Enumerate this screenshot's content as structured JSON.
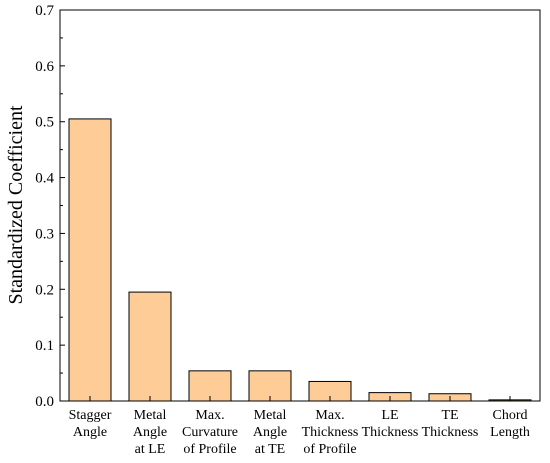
{
  "chart_data": {
    "type": "bar",
    "title": "",
    "xlabel": "",
    "ylabel": "Standardized Coefficient",
    "ylim": [
      0,
      0.7
    ],
    "yticks": [
      "0.0",
      "0.1",
      "0.2",
      "0.3",
      "0.4",
      "0.5",
      "0.6",
      "0.7"
    ],
    "ytick_values": [
      0,
      0.1,
      0.2,
      0.3,
      0.4,
      0.5,
      0.6,
      0.7
    ],
    "grid": false,
    "legend": "none",
    "bar_color": "#fdcc97",
    "bar_edge_color": "#000000",
    "categories": [
      [
        "Stagger",
        "Angle"
      ],
      [
        "Metal",
        "Angle",
        "at LE"
      ],
      [
        "Max.",
        "Curvature",
        "of Profile"
      ],
      [
        "Metal",
        "Angle",
        "at TE"
      ],
      [
        "Max.",
        "Thickness",
        "of Profile"
      ],
      [
        "LE",
        "Thickness"
      ],
      [
        "TE",
        "Thickness"
      ],
      [
        "Chord",
        "Length"
      ]
    ],
    "values": [
      0.505,
      0.195,
      0.054,
      0.054,
      0.035,
      0.015,
      0.013,
      0.002
    ]
  }
}
